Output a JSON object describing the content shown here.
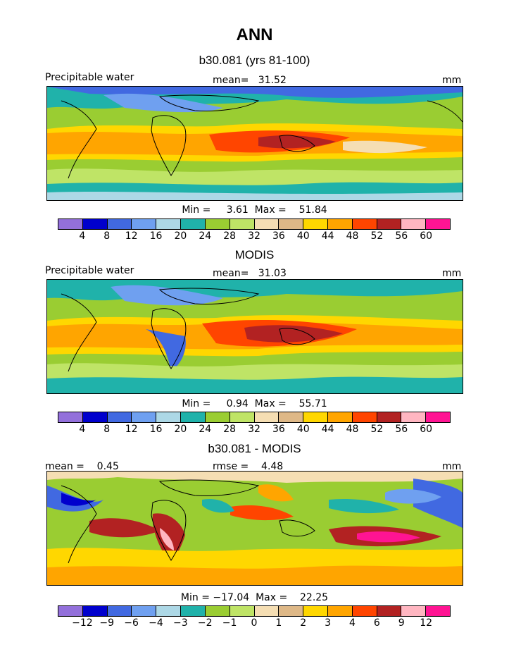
{
  "title": "ANN",
  "palette": [
    "#9370db",
    "#0000cd",
    "#4169e1",
    "#6fa0f0",
    "#add8e6",
    "#20b2aa",
    "#9acd32",
    "#bfe466",
    "#f5deb3",
    "#deb887",
    "#ffd700",
    "#ffa500",
    "#ff4500",
    "#b22222",
    "#ffb6c1",
    "#ff1493"
  ],
  "colors": {
    "ocean_warm": "#ff4500",
    "ocean_cool": "#9acd32",
    "land_outline": "#000000"
  },
  "panels": [
    {
      "title": "b30.081 (yrs 81-100)",
      "left_label": "Precipitable water",
      "center_label": "mean=   31.52",
      "right_label": "mm",
      "minmax_label": "Min =     3.61  Max =    51.84",
      "ticks": [
        "4",
        "8",
        "12",
        "16",
        "20",
        "24",
        "28",
        "32",
        "36",
        "40",
        "44",
        "48",
        "52",
        "56",
        "60"
      ]
    },
    {
      "title": "MODIS",
      "left_label": "Precipitable water",
      "center_label": "mean=   31.03",
      "right_label": "mm",
      "minmax_label": "Min =     0.94  Max =    55.71",
      "ticks": [
        "4",
        "8",
        "12",
        "16",
        "20",
        "24",
        "28",
        "32",
        "36",
        "40",
        "44",
        "48",
        "52",
        "56",
        "60"
      ]
    },
    {
      "title": "b30.081 - MODIS",
      "left_label": "mean =    0.45",
      "center_label": "rmse =    4.48",
      "right_label": "mm",
      "minmax_label": "Min = −17.04  Max =    22.25",
      "ticks": [
        "−12",
        "−9",
        "−6",
        "−4",
        "−3",
        "−2",
        "−1",
        "0",
        "1",
        "2",
        "3",
        "4",
        "6",
        "9",
        "12"
      ]
    }
  ],
  "chart_data": [
    {
      "type": "heatmap",
      "title": "b30.081 (yrs 81-100)",
      "variable": "Precipitable water",
      "units": "mm",
      "mean": 31.52,
      "min": 3.61,
      "max": 51.84,
      "contour_levels": [
        4,
        8,
        12,
        16,
        20,
        24,
        28,
        32,
        36,
        40,
        44,
        48,
        52,
        56,
        60
      ]
    },
    {
      "type": "heatmap",
      "title": "MODIS",
      "variable": "Precipitable water",
      "units": "mm",
      "mean": 31.03,
      "min": 0.94,
      "max": 55.71,
      "contour_levels": [
        4,
        8,
        12,
        16,
        20,
        24,
        28,
        32,
        36,
        40,
        44,
        48,
        52,
        56,
        60
      ]
    },
    {
      "type": "heatmap",
      "title": "b30.081 - MODIS",
      "units": "mm",
      "mean": 0.45,
      "rmse": 4.48,
      "min": -17.04,
      "max": 22.25,
      "contour_levels": [
        -12,
        -9,
        -6,
        -4,
        -3,
        -2,
        -1,
        0,
        1,
        2,
        3,
        4,
        6,
        9,
        12
      ]
    }
  ]
}
